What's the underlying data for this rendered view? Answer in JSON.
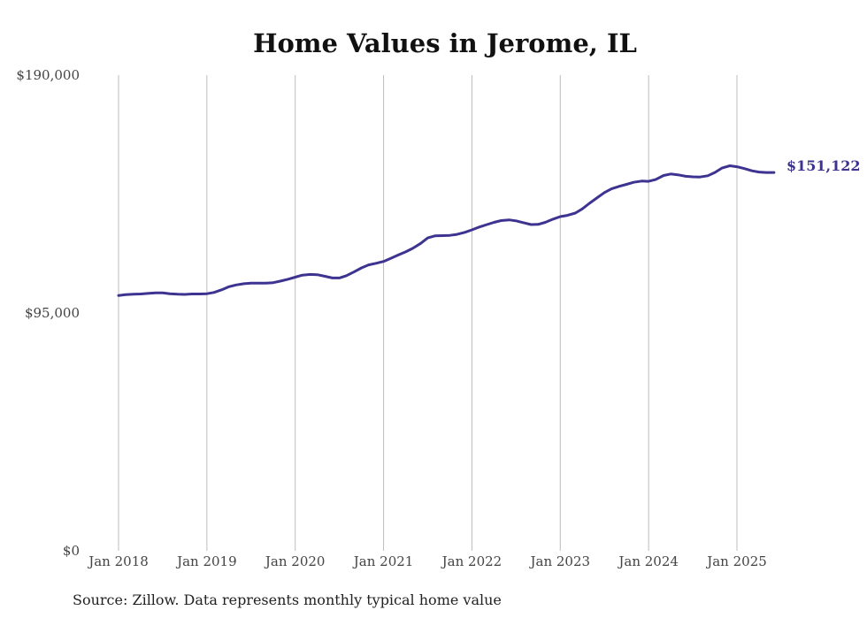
{
  "chart_data": {
    "type": "line",
    "title": "Home Values in Jerome, IL",
    "y_ticks": [
      "$190,000",
      "$95,000",
      "$0"
    ],
    "y_tick_values": [
      190000,
      95000,
      0
    ],
    "ylim": [
      0,
      190000
    ],
    "x_tick_labels": [
      "Jan 2018",
      "Jan 2019",
      "Jan 2020",
      "Jan 2021",
      "Jan 2022",
      "Jan 2023",
      "Jan 2024",
      "Jan 2025"
    ],
    "x_tick_values": [
      2018.0,
      2019.0,
      2020.0,
      2021.0,
      2022.0,
      2023.0,
      2024.0,
      2025.0
    ],
    "xlim": [
      2018.0,
      2025.42
    ],
    "grid": "vertical",
    "series": [
      {
        "color": "#3d3390",
        "points": [
          [
            2018.0,
            102000
          ],
          [
            2018.08,
            102300
          ],
          [
            2018.17,
            102500
          ],
          [
            2018.25,
            102600
          ],
          [
            2018.33,
            102800
          ],
          [
            2018.42,
            103000
          ],
          [
            2018.5,
            103000
          ],
          [
            2018.58,
            102700
          ],
          [
            2018.67,
            102500
          ],
          [
            2018.75,
            102400
          ],
          [
            2018.83,
            102600
          ],
          [
            2018.92,
            102600
          ],
          [
            2019.0,
            102700
          ],
          [
            2019.08,
            103200
          ],
          [
            2019.17,
            104300
          ],
          [
            2019.25,
            105500
          ],
          [
            2019.33,
            106200
          ],
          [
            2019.42,
            106700
          ],
          [
            2019.5,
            106900
          ],
          [
            2019.58,
            106900
          ],
          [
            2019.67,
            106900
          ],
          [
            2019.75,
            107100
          ],
          [
            2019.83,
            107700
          ],
          [
            2019.92,
            108500
          ],
          [
            2020.0,
            109300
          ],
          [
            2020.08,
            110100
          ],
          [
            2020.17,
            110400
          ],
          [
            2020.25,
            110300
          ],
          [
            2020.33,
            109700
          ],
          [
            2020.42,
            109000
          ],
          [
            2020.5,
            109000
          ],
          [
            2020.58,
            109900
          ],
          [
            2020.67,
            111500
          ],
          [
            2020.75,
            113000
          ],
          [
            2020.83,
            114200
          ],
          [
            2020.92,
            114900
          ],
          [
            2021.0,
            115600
          ],
          [
            2021.08,
            116800
          ],
          [
            2021.17,
            118200
          ],
          [
            2021.25,
            119400
          ],
          [
            2021.33,
            120800
          ],
          [
            2021.42,
            122800
          ],
          [
            2021.5,
            125000
          ],
          [
            2021.58,
            125800
          ],
          [
            2021.67,
            125900
          ],
          [
            2021.75,
            126000
          ],
          [
            2021.83,
            126400
          ],
          [
            2021.92,
            127200
          ],
          [
            2022.0,
            128200
          ],
          [
            2022.08,
            129300
          ],
          [
            2022.17,
            130300
          ],
          [
            2022.25,
            131200
          ],
          [
            2022.33,
            131900
          ],
          [
            2022.42,
            132200
          ],
          [
            2022.5,
            131800
          ],
          [
            2022.58,
            131100
          ],
          [
            2022.67,
            130300
          ],
          [
            2022.75,
            130400
          ],
          [
            2022.83,
            131200
          ],
          [
            2022.92,
            132500
          ],
          [
            2023.0,
            133500
          ],
          [
            2023.08,
            134000
          ],
          [
            2023.17,
            134900
          ],
          [
            2023.25,
            136600
          ],
          [
            2023.33,
            138800
          ],
          [
            2023.42,
            141100
          ],
          [
            2023.5,
            143100
          ],
          [
            2023.58,
            144600
          ],
          [
            2023.67,
            145600
          ],
          [
            2023.75,
            146400
          ],
          [
            2023.83,
            147200
          ],
          [
            2023.92,
            147700
          ],
          [
            2024.0,
            147600
          ],
          [
            2024.08,
            148300
          ],
          [
            2024.17,
            149900
          ],
          [
            2024.25,
            150500
          ],
          [
            2024.33,
            150200
          ],
          [
            2024.42,
            149600
          ],
          [
            2024.5,
            149400
          ],
          [
            2024.58,
            149300
          ],
          [
            2024.67,
            149800
          ],
          [
            2024.75,
            151100
          ],
          [
            2024.83,
            152900
          ],
          [
            2024.92,
            153800
          ],
          [
            2025.0,
            153400
          ],
          [
            2025.08,
            152700
          ],
          [
            2025.17,
            151800
          ],
          [
            2025.25,
            151300
          ],
          [
            2025.33,
            151100
          ],
          [
            2025.42,
            151122
          ]
        ]
      }
    ],
    "end_label": "$151,122"
  },
  "source": "Source: Zillow. Data represents monthly typical home value"
}
